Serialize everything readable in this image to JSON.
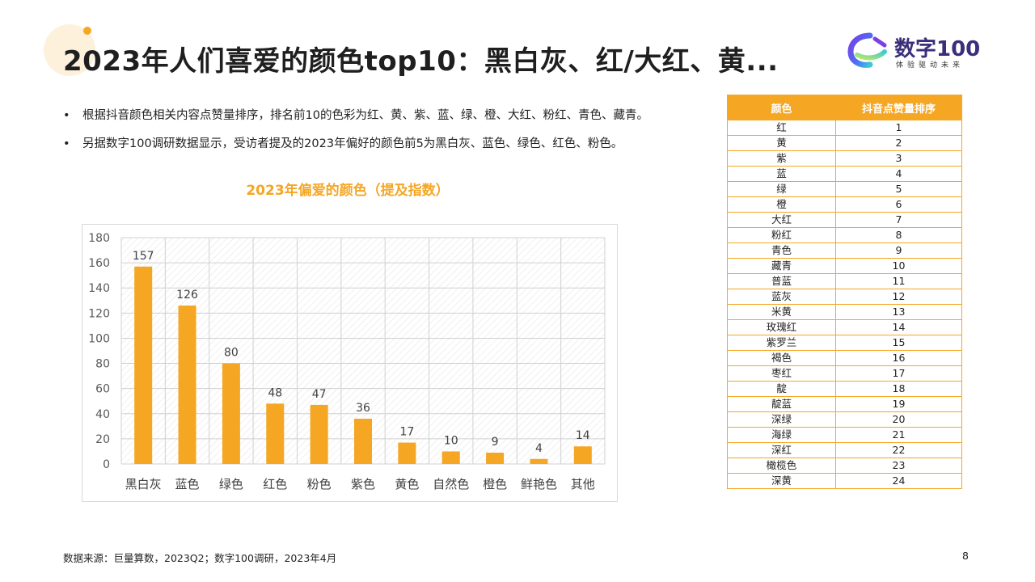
{
  "title": "2023年人们喜爱的颜色top10：黑白灰、红/大红、黄...",
  "logo": {
    "name": "数字100",
    "subtitle": "体验驱动未来"
  },
  "bullets": [
    "根据抖音颜色相关内容点赞量排序，排名前10的色彩为红、黄、紫、蓝、绿、橙、大红、粉红、青色、藏青。",
    "另据数字100调研数据显示，受访者提及的2023年偏好的颜色前5为黑白灰、蓝色、绿色、红色、粉色。"
  ],
  "bullet_marker": "•",
  "chart_data": {
    "type": "bar",
    "title": "2023年偏爱的颜色（提及指数）",
    "categories": [
      "黑白灰",
      "蓝色",
      "绿色",
      "红色",
      "粉色",
      "紫色",
      "黄色",
      "自然色",
      "橙色",
      "鲜艳色",
      "其他"
    ],
    "values": [
      157,
      126,
      80,
      48,
      47,
      36,
      17,
      10,
      9,
      4,
      14
    ],
    "ylim": [
      0,
      180
    ],
    "yticks": [
      0,
      20,
      40,
      60,
      80,
      100,
      120,
      140,
      160,
      180
    ],
    "xlabel": "",
    "ylabel": "",
    "grid": true,
    "bar_color": "#f5a623"
  },
  "table": {
    "headers": [
      "颜色",
      "抖音点赞量排序"
    ],
    "rows": [
      [
        "红",
        "1"
      ],
      [
        "黄",
        "2"
      ],
      [
        "紫",
        "3"
      ],
      [
        "蓝",
        "4"
      ],
      [
        "绿",
        "5"
      ],
      [
        "橙",
        "6"
      ],
      [
        "大红",
        "7"
      ],
      [
        "粉红",
        "8"
      ],
      [
        "青色",
        "9"
      ],
      [
        "藏青",
        "10"
      ],
      [
        "普蓝",
        "11"
      ],
      [
        "蓝灰",
        "12"
      ],
      [
        "米黄",
        "13"
      ],
      [
        "玫瑰红",
        "14"
      ],
      [
        "紫罗兰",
        "15"
      ],
      [
        "褐色",
        "16"
      ],
      [
        "枣红",
        "17"
      ],
      [
        "靛",
        "18"
      ],
      [
        "靛蓝",
        "19"
      ],
      [
        "深绿",
        "20"
      ],
      [
        "海绿",
        "21"
      ],
      [
        "深红",
        "22"
      ],
      [
        "橄榄色",
        "23"
      ],
      [
        "深黄",
        "24"
      ]
    ]
  },
  "footer": "数据来源：巨量算数，2023Q2；数字100调研，2023年4月",
  "page_number": "8",
  "colors": {
    "accent": "#f5a623",
    "logo_text": "#3a2f7a"
  }
}
